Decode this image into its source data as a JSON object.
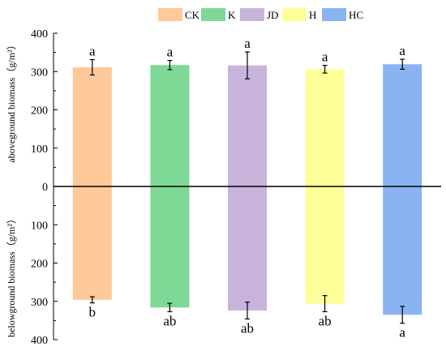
{
  "chart_data": {
    "type": "bar",
    "categories": [
      "CK",
      "K",
      "JD",
      "H",
      "HC"
    ],
    "colors": {
      "CK": "#FFC999",
      "K": "#7FD996",
      "JD": "#C8B4DB",
      "H": "#FFFF99",
      "HC": "#8AB4F1"
    },
    "legend": {
      "placement": "top-center",
      "entries": [
        "CK",
        "K",
        "JD",
        "H",
        "HC"
      ]
    },
    "ylim": [
      -400,
      400
    ],
    "y_ticks": [
      400,
      300,
      200,
      100,
      0,
      100,
      200,
      300,
      400
    ],
    "ylabel_top": "aboveground biomass（g/m²）",
    "ylabel_bottom": "belowground biomass（g/m²）",
    "series": [
      {
        "name": "aboveground biomass",
        "values": [
          311,
          317,
          316,
          306,
          319
        ],
        "errors": [
          20,
          12,
          35,
          10,
          13
        ],
        "sig_labels": [
          "a",
          "a",
          "a",
          "a",
          "a"
        ]
      },
      {
        "name": "belowground biomass",
        "values": [
          -296,
          -316,
          -324,
          -306,
          -335
        ],
        "errors": [
          8,
          11,
          22,
          21,
          22
        ],
        "sig_labels": [
          "b",
          "ab",
          "ab",
          "ab",
          "a"
        ]
      }
    ],
    "grid": false
  }
}
